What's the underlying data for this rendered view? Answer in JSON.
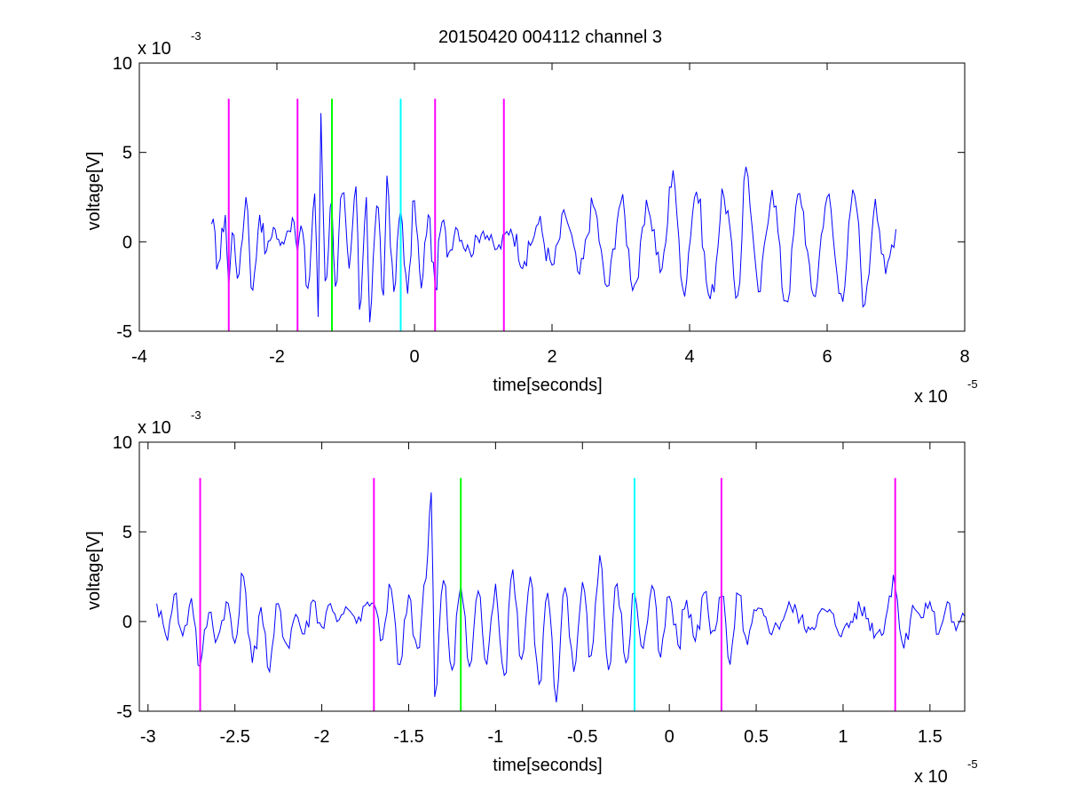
{
  "figure": {
    "title": "20150420 004112 channel 3"
  },
  "colors": {
    "signal": "#0000ff",
    "magenta_marker": "#ff00ff",
    "green_marker": "#00ff00",
    "cyan_marker": "#00ffff",
    "axis": "#000000"
  },
  "chart_data": [
    {
      "type": "line",
      "title": "20150420 004112 channel 3",
      "xlabel": "time[seconds]",
      "ylabel": "voltage[V]",
      "x_exponent_label": "x 10",
      "x_exponent": "-5",
      "y_exponent_label": "x 10",
      "y_exponent": "-3",
      "xlim": [
        -4,
        8
      ],
      "ylim": [
        -5,
        10
      ],
      "xticks": [
        -4,
        -2,
        0,
        2,
        4,
        6,
        8
      ],
      "xtick_labels": [
        "-4",
        "-2",
        "0",
        "2",
        "4",
        "6",
        "8"
      ],
      "yticks": [
        -5,
        0,
        5,
        10
      ],
      "ytick_labels": [
        "-5",
        "0",
        "5",
        "10"
      ],
      "grid": false,
      "signal_range": [
        -2.95,
        7.0
      ],
      "markers": [
        {
          "x": -2.7,
          "color": "magenta",
          "ymin": -5,
          "ymax": 8
        },
        {
          "x": -1.7,
          "color": "magenta",
          "ymin": -5,
          "ymax": 8
        },
        {
          "x": -1.2,
          "color": "green",
          "ymin": -5,
          "ymax": 8
        },
        {
          "x": -0.2,
          "color": "cyan",
          "ymin": -5,
          "ymax": 8
        },
        {
          "x": 0.3,
          "color": "magenta",
          "ymin": -5,
          "ymax": 8
        },
        {
          "x": 1.3,
          "color": "magenta",
          "ymin": -5,
          "ymax": 8
        }
      ],
      "series": [
        {
          "x": [
            -2.95,
            -2.85,
            -2.75,
            -2.7,
            -2.65,
            -2.55,
            -2.45,
            -2.35,
            -2.25,
            -2.15,
            -2.05,
            -1.95,
            -1.85,
            -1.75,
            -1.7,
            -1.65,
            -1.55,
            -1.45,
            -1.4,
            -1.36,
            -1.3,
            -1.2,
            -1.15,
            -1.05,
            -0.95,
            -0.85,
            -0.8,
            -0.7,
            -0.65,
            -0.55,
            -0.45,
            -0.4,
            -0.3,
            -0.2,
            -0.1,
            0.0,
            0.1,
            0.2,
            0.3,
            0.4,
            0.5,
            0.6,
            0.8,
            1.0,
            1.2,
            1.4,
            1.6,
            1.8,
            2.0,
            2.2,
            2.4,
            2.6,
            2.8,
            3.0,
            3.2,
            3.4,
            3.6,
            3.76,
            3.9,
            4.1,
            4.3,
            4.5,
            4.7,
            4.82,
            5.0,
            5.2,
            5.4,
            5.6,
            5.8,
            6.0,
            6.2,
            6.4,
            6.55,
            6.7,
            6.85,
            7.0
          ],
          "y": [
            1.0,
            -1.2,
            1.5,
            -2.5,
            0.5,
            -1.8,
            2.5,
            -2.7,
            1.5,
            -0.5,
            0.8,
            -0.2,
            0.6,
            1.1,
            -0.6,
            0.9,
            -2.6,
            2.7,
            -4.2,
            7.2,
            -2.2,
            2.3,
            -2.5,
            2.7,
            -1.5,
            3.1,
            -3.8,
            2.5,
            -4.5,
            2.0,
            -3.0,
            3.7,
            -2.8,
            1.8,
            -2.9,
            2.3,
            -2.6,
            1.5,
            -2.5,
            1.1,
            -0.6,
            0.8,
            -0.5,
            0.6,
            -0.4,
            0.7,
            -1.1,
            1.0,
            -1.3,
            1.4,
            -1.8,
            2.0,
            -2.5,
            2.2,
            -2.4,
            1.8,
            -1.5,
            4.0,
            -2.6,
            2.8,
            -3.2,
            2.5,
            -3.0,
            4.2,
            -2.8,
            2.9,
            -3.3,
            2.7,
            -3.0,
            2.5,
            -2.9,
            2.6,
            -3.5,
            2.4,
            -1.8,
            0.7
          ]
        }
      ]
    },
    {
      "type": "line",
      "title": "",
      "xlabel": "time[seconds]",
      "ylabel": "voltage[V]",
      "x_exponent_label": "x 10",
      "x_exponent": "-5",
      "y_exponent_label": "x 10",
      "y_exponent": "-3",
      "xlim": [
        -3.05,
        1.7
      ],
      "ylim": [
        -5,
        10
      ],
      "xticks": [
        -3,
        -2.5,
        -2,
        -1.5,
        -1,
        -0.5,
        0,
        0.5,
        1,
        1.5
      ],
      "xtick_labels": [
        "-3",
        "-2.5",
        "-2",
        "-1.5",
        "-1",
        "-0.5",
        "0",
        "0.5",
        "1",
        "1.5"
      ],
      "yticks": [
        -5,
        0,
        5,
        10
      ],
      "ytick_labels": [
        "-5",
        "0",
        "5",
        "10"
      ],
      "grid": false,
      "signal_range": [
        -2.95,
        1.7
      ],
      "markers": [
        {
          "x": -2.7,
          "color": "magenta",
          "ymin": -5,
          "ymax": 8
        },
        {
          "x": -1.7,
          "color": "magenta",
          "ymin": -5,
          "ymax": 8
        },
        {
          "x": -1.2,
          "color": "green",
          "ymin": -5,
          "ymax": 8
        },
        {
          "x": -0.2,
          "color": "cyan",
          "ymin": -5,
          "ymax": 8
        },
        {
          "x": 0.3,
          "color": "magenta",
          "ymin": -5,
          "ymax": 8
        },
        {
          "x": 1.3,
          "color": "magenta",
          "ymin": -5,
          "ymax": 8
        }
      ],
      "series": [
        {
          "x": [
            -2.95,
            -2.9,
            -2.85,
            -2.8,
            -2.75,
            -2.7,
            -2.65,
            -2.6,
            -2.55,
            -2.5,
            -2.45,
            -2.4,
            -2.35,
            -2.3,
            -2.25,
            -2.2,
            -2.15,
            -2.1,
            -2.05,
            -2.0,
            -1.95,
            -1.9,
            -1.85,
            -1.8,
            -1.75,
            -1.7,
            -1.65,
            -1.6,
            -1.55,
            -1.5,
            -1.45,
            -1.4,
            -1.37,
            -1.35,
            -1.3,
            -1.25,
            -1.2,
            -1.15,
            -1.1,
            -1.05,
            -1.0,
            -0.95,
            -0.9,
            -0.85,
            -0.8,
            -0.75,
            -0.7,
            -0.65,
            -0.6,
            -0.55,
            -0.5,
            -0.45,
            -0.4,
            -0.35,
            -0.3,
            -0.25,
            -0.2,
            -0.15,
            -0.1,
            -0.05,
            0.0,
            0.05,
            0.1,
            0.15,
            0.2,
            0.25,
            0.3,
            0.35,
            0.4,
            0.45,
            0.5,
            0.6,
            0.7,
            0.8,
            0.9,
            1.0,
            1.1,
            1.2,
            1.3,
            1.35,
            1.4,
            1.45,
            1.5,
            1.55,
            1.6,
            1.65,
            1.7
          ],
          "y": [
            1.0,
            -0.7,
            1.5,
            -0.8,
            1.3,
            -2.5,
            0.5,
            -0.9,
            1.1,
            -1.2,
            2.5,
            -2.3,
            0.8,
            -2.8,
            1.0,
            -1.3,
            0.4,
            -0.7,
            1.2,
            -0.3,
            1.0,
            0.1,
            0.7,
            -0.1,
            0.9,
            1.0,
            -1.0,
            1.8,
            -2.4,
            1.5,
            -1.5,
            2.4,
            7.2,
            -4.2,
            2.3,
            -2.7,
            2.0,
            -2.5,
            1.7,
            -2.4,
            2.1,
            -3.0,
            2.9,
            -2.1,
            2.5,
            -3.5,
            1.6,
            -4.5,
            1.9,
            -2.8,
            2.2,
            -1.9,
            3.7,
            -2.7,
            2.1,
            -2.3,
            1.6,
            -1.5,
            2.0,
            -2.0,
            1.4,
            -1.3,
            1.2,
            -1.1,
            1.6,
            -0.5,
            1.4,
            -2.4,
            1.5,
            -1.3,
            0.6,
            -0.4,
            0.8,
            -0.3,
            0.6,
            -0.5,
            0.7,
            -0.6,
            1.9,
            -1.5,
            0.9,
            0.2,
            1.1,
            -0.7,
            1.1,
            -0.5,
            0.3
          ]
        }
      ]
    }
  ]
}
